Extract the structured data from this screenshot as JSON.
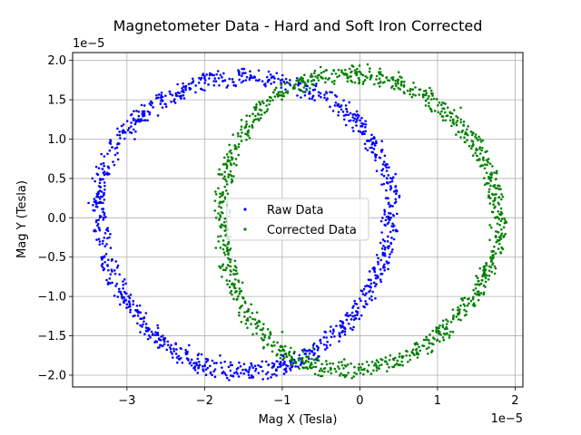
{
  "chart_data": {
    "type": "scatter",
    "title": "Magnetometer Data - Hard and Soft Iron Corrected",
    "xlabel": "Mag X (Tesla)",
    "ylabel": "Mag Y (Tesla)",
    "x_offset_label": "1e−5",
    "y_offset_label": "1e−5",
    "xlim": [
      -3.7,
      2.1
    ],
    "ylim": [
      -2.15,
      2.1
    ],
    "x_ticks": [
      -3,
      -2,
      -1,
      0,
      1,
      2
    ],
    "x_tick_labels": [
      "−3",
      "−2",
      "−1",
      "0",
      "1",
      "2"
    ],
    "y_ticks": [
      -2.0,
      -1.5,
      -1.0,
      -0.5,
      0.0,
      0.5,
      1.0,
      1.5,
      2.0
    ],
    "y_tick_labels": [
      "−2.0",
      "−1.5",
      "−1.0",
      "−0.5",
      "0.0",
      "0.5",
      "1.0",
      "1.5",
      "2.0"
    ],
    "grid": true,
    "legend_position": "center",
    "series": [
      {
        "name": "Raw Data",
        "color": "#0000ff",
        "ellipse": {
          "cx": -1.48,
          "cy": -0.05,
          "rx": 1.88,
          "ry": 1.87
        },
        "points": [
          [
            -3.3,
            0.0
          ],
          [
            -3.25,
            0.55
          ],
          [
            -3.15,
            0.8
          ],
          [
            -2.9,
            1.0
          ],
          [
            -2.6,
            1.3
          ],
          [
            -2.3,
            1.55
          ],
          [
            -2.0,
            1.62
          ],
          [
            -1.7,
            1.68
          ],
          [
            -1.4,
            1.78
          ],
          [
            -1.15,
            1.82
          ],
          [
            -0.9,
            1.75
          ],
          [
            -0.6,
            1.55
          ],
          [
            -0.2,
            1.25
          ],
          [
            0.15,
            1.0
          ],
          [
            0.35,
            0.5
          ],
          [
            0.4,
            0.0
          ],
          [
            0.38,
            -0.5
          ],
          [
            0.15,
            -1.0
          ],
          [
            -0.2,
            -1.4
          ],
          [
            -0.6,
            -1.62
          ],
          [
            -1.0,
            -1.75
          ],
          [
            -1.4,
            -1.85
          ],
          [
            -1.8,
            -1.75
          ],
          [
            -2.2,
            -1.62
          ],
          [
            -2.6,
            -1.4
          ],
          [
            -3.0,
            -1.1
          ],
          [
            -3.25,
            -0.6
          ],
          [
            -3.35,
            -0.3
          ],
          [
            -3.35,
            0.2
          ],
          [
            -3.38,
            -0.1
          ]
        ]
      },
      {
        "name": "Corrected Data",
        "color": "#008000",
        "ellipse": {
          "cx": -0.05,
          "cy": -0.05,
          "rx": 1.78,
          "ry": 1.88
        },
        "points": [
          [
            -1.85,
            0.0
          ],
          [
            -1.8,
            0.55
          ],
          [
            -1.6,
            0.9
          ],
          [
            -1.3,
            1.25
          ],
          [
            -1.0,
            1.55
          ],
          [
            -0.6,
            1.75
          ],
          [
            -0.2,
            1.82
          ],
          [
            0.1,
            1.95
          ],
          [
            0.5,
            1.85
          ],
          [
            0.9,
            1.65
          ],
          [
            1.3,
            1.4
          ],
          [
            1.55,
            1.0
          ],
          [
            1.7,
            0.55
          ],
          [
            1.75,
            0.0
          ],
          [
            1.72,
            -0.5
          ],
          [
            1.6,
            -0.95
          ],
          [
            1.3,
            -1.3
          ],
          [
            1.0,
            -1.55
          ],
          [
            0.6,
            -1.75
          ],
          [
            0.2,
            -1.85
          ],
          [
            -0.2,
            -1.8
          ],
          [
            -0.6,
            -1.65
          ],
          [
            -1.0,
            -1.45
          ],
          [
            -1.4,
            -1.1
          ],
          [
            -1.7,
            -0.6
          ],
          [
            -1.82,
            -0.3
          ],
          [
            -1.85,
            0.3
          ],
          [
            -1.55,
            -0.9
          ],
          [
            0.35,
            -1.95
          ],
          [
            1.2,
            -1.45
          ]
        ]
      }
    ]
  }
}
